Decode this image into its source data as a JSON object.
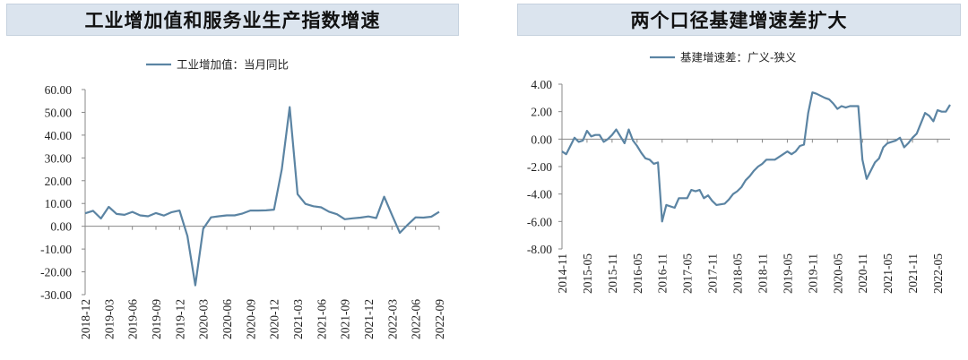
{
  "colors": {
    "line": "#5b84a3",
    "title_bg": "#dbe4ee"
  },
  "chart_data": [
    {
      "type": "line",
      "title": "工业增加值和服务业生产指数增速",
      "legend": "工业增加值：当月同比",
      "ylim": [
        -30,
        60
      ],
      "y_ticks": [
        "60.00",
        "50.00",
        "40.00",
        "30.00",
        "20.00",
        "10.00",
        "0.00",
        "-10.00",
        "-20.00",
        "-30.00"
      ],
      "x_ticks": [
        "2018-12",
        "2019-03",
        "2019-06",
        "2019-09",
        "2019-12",
        "2020-03",
        "2020-06",
        "2020-09",
        "2020-12",
        "2021-03",
        "2021-06",
        "2021-09",
        "2021-12",
        "2022-03",
        "2022-06",
        "2022-09"
      ],
      "series": [
        {
          "x": [
            "2018-12",
            "2019-01",
            "2019-02",
            "2019-03",
            "2019-04",
            "2019-05",
            "2019-06",
            "2019-07",
            "2019-08",
            "2019-09",
            "2019-10",
            "2019-11",
            "2019-12",
            "2020-01",
            "2020-02",
            "2020-03",
            "2020-04",
            "2020-05",
            "2020-06",
            "2020-07",
            "2020-08",
            "2020-09",
            "2020-10",
            "2020-11",
            "2020-12",
            "2021-01",
            "2021-02",
            "2021-03",
            "2021-04",
            "2021-05",
            "2021-06",
            "2021-07",
            "2021-08",
            "2021-09",
            "2021-10",
            "2021-11",
            "2021-12",
            "2022-01",
            "2022-02",
            "2022-03",
            "2022-04",
            "2022-05",
            "2022-06",
            "2022-07",
            "2022-08",
            "2022-09"
          ],
          "values": [
            5.7,
            6.8,
            3.4,
            8.5,
            5.4,
            5.0,
            6.3,
            4.8,
            4.4,
            5.8,
            4.7,
            6.2,
            6.9,
            -4.3,
            -25.9,
            -1.1,
            3.9,
            4.4,
            4.8,
            4.8,
            5.6,
            6.9,
            6.9,
            7.0,
            7.3,
            25.0,
            52.3,
            14.1,
            9.8,
            8.8,
            8.3,
            6.4,
            5.3,
            3.1,
            3.5,
            3.8,
            4.3,
            3.6,
            13.0,
            5.0,
            -2.9,
            0.7,
            3.9,
            3.8,
            4.2,
            6.3
          ]
        }
      ]
    },
    {
      "type": "line",
      "title": "两个口径基建增速差扩大",
      "legend": "基建增速差：广义-狭义",
      "ylim": [
        -8,
        4
      ],
      "y_ticks": [
        "4.00",
        "2.00",
        "0.00",
        "-2.00",
        "-4.00",
        "-6.00",
        "-8.00"
      ],
      "x_ticks": [
        "2014-11",
        "2015-05",
        "2015-11",
        "2016-05",
        "2016-11",
        "2017-05",
        "2017-11",
        "2018-05",
        "2018-11",
        "2019-05",
        "2019-11",
        "2020-05",
        "2020-11",
        "2021-05",
        "2021-11",
        "2022-05"
      ],
      "series": [
        {
          "x": [
            "2014-11",
            "2014-12",
            "2015-02",
            "2015-03",
            "2015-04",
            "2015-05",
            "2015-06",
            "2015-07",
            "2015-08",
            "2015-09",
            "2015-10",
            "2015-11",
            "2015-12",
            "2016-02",
            "2016-03",
            "2016-04",
            "2016-05",
            "2016-06",
            "2016-07",
            "2016-08",
            "2016-09",
            "2016-10",
            "2016-11",
            "2016-12",
            "2017-02",
            "2017-03",
            "2017-04",
            "2017-05",
            "2017-06",
            "2017-07",
            "2017-08",
            "2017-09",
            "2017-10",
            "2017-11",
            "2017-12",
            "2018-02",
            "2018-03",
            "2018-04",
            "2018-05",
            "2018-06",
            "2018-07",
            "2018-08",
            "2018-09",
            "2018-10",
            "2018-11",
            "2018-12",
            "2019-02",
            "2019-03",
            "2019-04",
            "2019-05",
            "2019-06",
            "2019-07",
            "2019-08",
            "2019-09",
            "2019-10",
            "2019-11",
            "2019-12",
            "2020-02",
            "2020-03",
            "2020-04",
            "2020-05",
            "2020-06",
            "2020-07",
            "2020-08",
            "2020-09",
            "2020-10",
            "2020-11",
            "2020-12",
            "2021-02",
            "2021-03",
            "2021-04",
            "2021-05",
            "2021-06",
            "2021-07",
            "2021-08",
            "2021-09",
            "2021-10",
            "2021-11",
            "2021-12",
            "2022-02",
            "2022-03",
            "2022-04",
            "2022-05",
            "2022-06",
            "2022-07",
            "2022-08"
          ],
          "values": [
            -0.9,
            -1.1,
            0.1,
            -0.2,
            -0.1,
            0.6,
            0.2,
            0.3,
            0.3,
            -0.2,
            0.0,
            0.3,
            0.7,
            -0.3,
            0.7,
            -0.1,
            -0.5,
            -1.0,
            -1.4,
            -1.5,
            -1.8,
            -1.7,
            -6.0,
            -4.8,
            -5.0,
            -4.3,
            -4.3,
            -4.3,
            -3.7,
            -3.8,
            -3.7,
            -4.3,
            -4.1,
            -4.5,
            -4.8,
            -4.7,
            -4.4,
            -4.0,
            -3.8,
            -3.5,
            -3.0,
            -2.7,
            -2.3,
            -2.0,
            -1.8,
            -1.5,
            -1.5,
            -1.3,
            -1.1,
            -0.9,
            -1.1,
            -0.9,
            -0.5,
            -0.4,
            1.9,
            3.4,
            3.3,
            3.0,
            2.9,
            2.6,
            2.2,
            2.4,
            2.3,
            2.4,
            2.4,
            2.4,
            -1.5,
            -2.9,
            -1.7,
            -1.4,
            -0.6,
            -0.3,
            -0.2,
            -0.1,
            0.1,
            -0.6,
            -0.3,
            0.1,
            0.4,
            1.9,
            1.7,
            1.3,
            2.1,
            2.0,
            2.0,
            2.5
          ]
        }
      ]
    }
  ]
}
